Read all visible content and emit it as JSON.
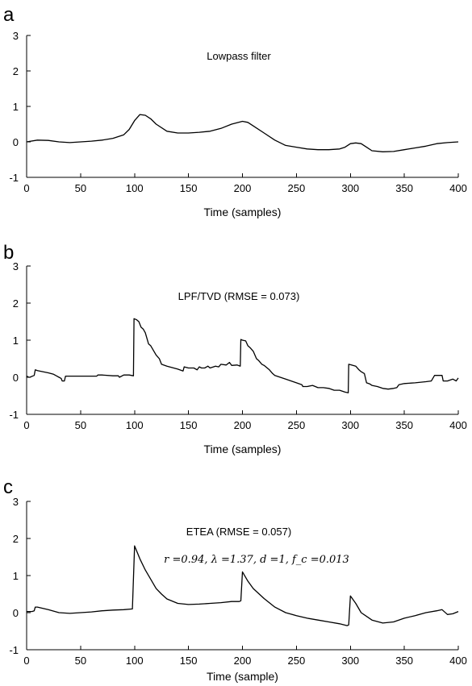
{
  "chart_data": [
    {
      "type": "line",
      "panel_label": "a",
      "title": "Lowpass filter",
      "annotation": "",
      "xlabel": "Time (samples)",
      "ylabel": "",
      "xlim": [
        0,
        400
      ],
      "ylim": [
        -1,
        3
      ],
      "xticks": [
        "0",
        "50",
        "100",
        "150",
        "200",
        "250",
        "300",
        "350",
        "400"
      ],
      "yticks": [
        "-1",
        "0",
        "1",
        "2",
        "3"
      ],
      "grid": false,
      "series": [
        {
          "color": "#000000",
          "x": [
            0,
            10,
            20,
            30,
            40,
            50,
            60,
            70,
            80,
            90,
            95,
            100,
            105,
            110,
            115,
            120,
            130,
            140,
            150,
            160,
            170,
            180,
            190,
            200,
            205,
            210,
            220,
            230,
            240,
            250,
            260,
            270,
            280,
            290,
            295,
            300,
            305,
            310,
            315,
            320,
            330,
            340,
            350,
            360,
            370,
            380,
            390,
            400
          ],
          "y": [
            0.0,
            0.05,
            0.04,
            0.0,
            -0.02,
            0.0,
            0.02,
            0.05,
            0.1,
            0.2,
            0.35,
            0.6,
            0.77,
            0.75,
            0.65,
            0.5,
            0.3,
            0.25,
            0.25,
            0.27,
            0.3,
            0.38,
            0.5,
            0.58,
            0.55,
            0.45,
            0.25,
            0.05,
            -0.1,
            -0.15,
            -0.2,
            -0.22,
            -0.22,
            -0.2,
            -0.15,
            -0.05,
            -0.03,
            -0.05,
            -0.15,
            -0.25,
            -0.28,
            -0.27,
            -0.22,
            -0.17,
            -0.12,
            -0.05,
            -0.02,
            0.0
          ]
        }
      ]
    },
    {
      "type": "line",
      "panel_label": "b",
      "title": "LPF/TVD (RMSE = 0.073)",
      "annotation": "",
      "xlabel": "Time (samples)",
      "ylabel": "",
      "xlim": [
        0,
        400
      ],
      "ylim": [
        -1,
        3
      ],
      "xticks": [
        "0",
        "50",
        "100",
        "150",
        "200",
        "250",
        "300",
        "350",
        "400"
      ],
      "yticks": [
        "-1",
        "0",
        "1",
        "2",
        "3"
      ],
      "grid": false,
      "series": [
        {
          "color": "#000000",
          "x": [
            0,
            2,
            3,
            7,
            8,
            10,
            20,
            25,
            28,
            30,
            32,
            33,
            35,
            36,
            40,
            50,
            60,
            65,
            66,
            70,
            80,
            85,
            86,
            90,
            95,
            99,
            99.5,
            102,
            104,
            106,
            108,
            110,
            113,
            115,
            118,
            120,
            123,
            125,
            130,
            140,
            145,
            146,
            150,
            155,
            158,
            160,
            162,
            165,
            168,
            170,
            175,
            178,
            180,
            185,
            188,
            190,
            195,
            198,
            198.5,
            200,
            203,
            205,
            207,
            210,
            213,
            215,
            218,
            220,
            225,
            228,
            230,
            240,
            250,
            255,
            256,
            260,
            265,
            270,
            275,
            280,
            285,
            290,
            295,
            298,
            298.5,
            301,
            305,
            308,
            310,
            313,
            315,
            318,
            320,
            325,
            330,
            335,
            340,
            343,
            345,
            350,
            360,
            370,
            375,
            378,
            380,
            385,
            386,
            390,
            395,
            398,
            400
          ],
          "y": [
            0.03,
            0.0,
            0.0,
            0.05,
            0.2,
            0.18,
            0.12,
            0.08,
            0.03,
            0.0,
            -0.03,
            -0.1,
            -0.1,
            0.03,
            0.03,
            0.03,
            0.03,
            0.03,
            0.06,
            0.06,
            0.04,
            0.04,
            0.0,
            0.06,
            0.06,
            0.04,
            1.58,
            1.55,
            1.5,
            1.35,
            1.3,
            1.2,
            0.9,
            0.85,
            0.7,
            0.6,
            0.5,
            0.35,
            0.3,
            0.22,
            0.17,
            0.28,
            0.25,
            0.25,
            0.2,
            0.28,
            0.25,
            0.25,
            0.3,
            0.25,
            0.3,
            0.28,
            0.35,
            0.33,
            0.4,
            0.32,
            0.33,
            0.3,
            1.02,
            1.0,
            0.98,
            0.85,
            0.8,
            0.7,
            0.5,
            0.45,
            0.35,
            0.32,
            0.2,
            0.1,
            0.05,
            -0.05,
            -0.15,
            -0.2,
            -0.25,
            -0.25,
            -0.22,
            -0.28,
            -0.28,
            -0.3,
            -0.35,
            -0.35,
            -0.4,
            -0.42,
            0.35,
            0.33,
            0.3,
            0.2,
            0.15,
            0.1,
            -0.15,
            -0.18,
            -0.22,
            -0.25,
            -0.3,
            -0.32,
            -0.3,
            -0.28,
            -0.2,
            -0.17,
            -0.15,
            -0.12,
            -0.1,
            0.05,
            0.05,
            0.05,
            -0.1,
            -0.1,
            -0.05,
            -0.1,
            -0.02
          ]
        }
      ]
    },
    {
      "type": "line",
      "panel_label": "c",
      "title": "ETEA (RMSE = 0.057)",
      "annotation": "r =0.94, λ =1.37, d =1, f_c =0.013",
      "xlabel": "Time (sample)",
      "ylabel": "",
      "xlim": [
        0,
        400
      ],
      "ylim": [
        -1,
        3
      ],
      "xticks": [
        "0",
        "50",
        "100",
        "150",
        "200",
        "250",
        "300",
        "350",
        "400"
      ],
      "yticks": [
        "-1",
        "0",
        "1",
        "2",
        "3"
      ],
      "grid": false,
      "series": [
        {
          "color": "#000000",
          "x": [
            0,
            5,
            7,
            8,
            10,
            20,
            30,
            40,
            50,
            60,
            70,
            80,
            90,
            98,
            100,
            105,
            110,
            115,
            120,
            125,
            130,
            140,
            150,
            160,
            170,
            180,
            190,
            197,
            198.5,
            200,
            205,
            210,
            220,
            230,
            240,
            250,
            260,
            270,
            280,
            290,
            297,
            298.5,
            300,
            305,
            310,
            320,
            330,
            340,
            350,
            360,
            370,
            380,
            385,
            390,
            395,
            400
          ],
          "y": [
            0.03,
            0.03,
            0.05,
            0.15,
            0.15,
            0.08,
            0.0,
            -0.02,
            0.0,
            0.02,
            0.05,
            0.07,
            0.08,
            0.1,
            1.8,
            1.45,
            1.15,
            0.9,
            0.65,
            0.5,
            0.37,
            0.25,
            0.22,
            0.23,
            0.25,
            0.27,
            0.3,
            0.3,
            0.32,
            1.1,
            0.85,
            0.65,
            0.38,
            0.15,
            0.0,
            -0.08,
            -0.15,
            -0.2,
            -0.25,
            -0.3,
            -0.35,
            -0.33,
            0.45,
            0.25,
            0.0,
            -0.2,
            -0.28,
            -0.25,
            -0.15,
            -0.08,
            0.0,
            0.05,
            0.08,
            -0.05,
            -0.03,
            0.03
          ]
        }
      ]
    }
  ]
}
